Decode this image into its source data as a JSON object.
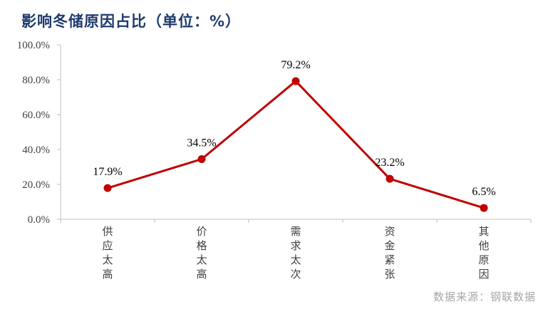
{
  "title": "影响冬储原因占比（单位：%）",
  "source": "数据来源：钢联数据",
  "colors": {
    "line": "#c00000",
    "axis": "#bfbfbf",
    "title": "#1f3b6e"
  },
  "chart_data": {
    "type": "line",
    "title": "影响冬储原因占比（单位：%）",
    "xlabel": "",
    "ylabel": "",
    "categories": [
      "供应太高",
      "价格太高",
      "需求太次",
      "资金紧张",
      "其他原因"
    ],
    "series": [
      {
        "values": [
          17.9,
          34.5,
          79.2,
          23.2,
          6.5
        ]
      }
    ],
    "data_labels": [
      "17.9%",
      "34.5%",
      "79.2%",
      "23.2%",
      "6.5%"
    ],
    "ylim": [
      0,
      100
    ],
    "yticks": [
      0,
      20,
      40,
      60,
      80,
      100
    ],
    "ytick_labels": [
      "0.0%",
      "20.0%",
      "40.0%",
      "60.0%",
      "80.0%",
      "100.0%"
    ],
    "grid": false,
    "legend": "none"
  }
}
